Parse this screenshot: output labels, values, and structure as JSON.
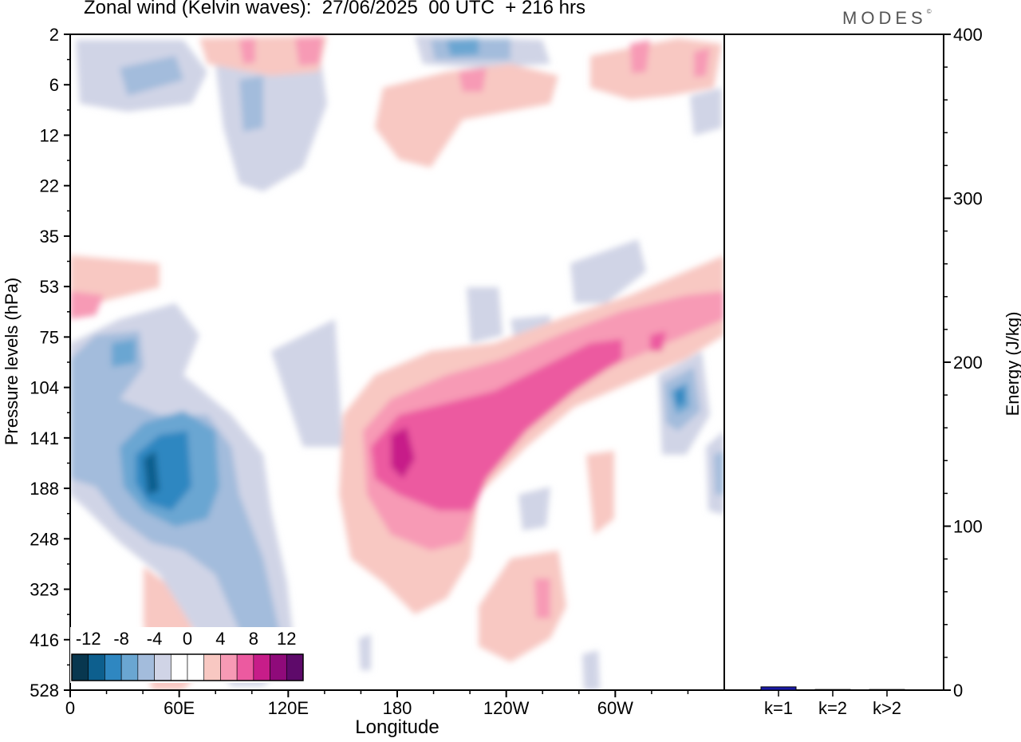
{
  "title": "Zonal wind (Kelvin waves):  27/06/2025  00 UTC  + 216 hrs",
  "brand": "MODES",
  "chart_data": [
    {
      "type": "heatmap",
      "title": "Zonal wind (Kelvin waves):  27/06/2025  00 UTC  + 216 hrs",
      "xlabel": "Longitude",
      "ylabel": "Pressure levels (hPa)",
      "x_ticks": [
        "0",
        "60E",
        "120E",
        "180",
        "120W",
        "60W"
      ],
      "y_ticks": [
        "2",
        "6",
        "12",
        "22",
        "35",
        "53",
        "75",
        "104",
        "141",
        "188",
        "248",
        "323",
        "416",
        "528"
      ],
      "colorbar": {
        "labels": [
          "-12",
          "-8",
          "-4",
          "0",
          "4",
          "8",
          "12"
        ],
        "colors": [
          "#08374f",
          "#0d5f8e",
          "#2f87c1",
          "#6aa6d2",
          "#a3bcdc",
          "#d0d4e6",
          "#ffffff",
          "#ffffff",
          "#f8c8c2",
          "#f79ab5",
          "#ec5aa0",
          "#c71d89",
          "#8f0a7a",
          "#5e0a6a"
        ]
      },
      "regions": [
        {
          "name": "easterly max 60E",
          "value": -12,
          "lon": 45,
          "pressure_hpa": 165
        },
        {
          "name": "easterly max 60W",
          "value": -10,
          "lon": 315,
          "pressure_hpa": 115
        },
        {
          "name": "westerly max 180",
          "value": 10,
          "lon": 183,
          "pressure_hpa": 155
        },
        {
          "name": "westerly band 120W-60W",
          "value": 8,
          "lon": 270,
          "pressure_hpa": 90
        }
      ]
    },
    {
      "type": "bar",
      "ylabel": "Energy (J/kg)",
      "categories": [
        "k=1",
        "k=2",
        "k>2"
      ],
      "values": [
        2,
        0.4,
        0.4
      ],
      "ylim": [
        0,
        400
      ],
      "y_ticks": [
        "0",
        "100",
        "200",
        "300",
        "400"
      ],
      "bar_color": "#1a1aa8"
    }
  ]
}
